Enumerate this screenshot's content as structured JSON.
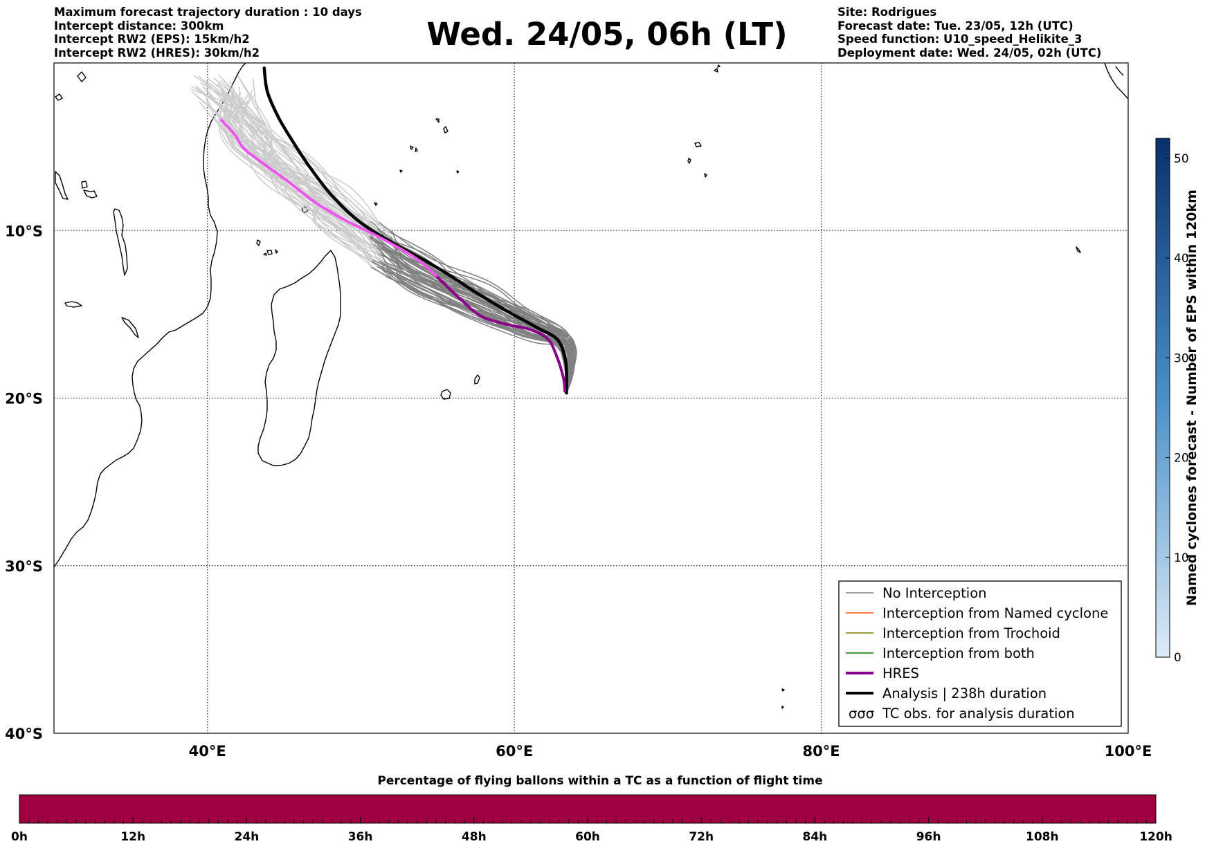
{
  "header": {
    "left_lines": [
      "Maximum forecast trajectory duration : 10 days",
      "Intercept distance: 300km",
      "Intercept RW2 (EPS):  15km/h2",
      "Intercept RW2 (HRES): 30km/h2"
    ],
    "title": "Wed. 24/05, 06h (LT)",
    "right_lines": [
      "Site: Rodrigues",
      "Forecast date: Tue. 23/05, 12h (UTC)",
      "Speed function: U10_speed_Helikite_3",
      "Deployment date: Wed. 24/05, 02h (UTC)"
    ]
  },
  "map": {
    "lon_range": [
      30,
      100
    ],
    "lat_range": [
      -40,
      0
    ],
    "lon_ticks": [
      {
        "lon": 40,
        "label": "40°E"
      },
      {
        "lon": 60,
        "label": "60°E"
      },
      {
        "lon": 80,
        "label": "80°E"
      },
      {
        "lon": 100,
        "label": "100°E"
      }
    ],
    "lat_ticks": [
      {
        "lat": -10,
        "label": "10°S"
      },
      {
        "lat": -20,
        "label": "20°S"
      },
      {
        "lat": -30,
        "label": "30°S"
      },
      {
        "lat": -40,
        "label": "40°S"
      }
    ],
    "grid": true,
    "colors": {
      "no_interception": "#808080",
      "no_interception_late": "#cccccc",
      "named_cyclone": "#ff5500",
      "trochoid": "#808000",
      "both": "#008000",
      "hres": "#8b008b",
      "hres_late": "#ee55ee",
      "analysis": "#000000"
    },
    "launch_site": {
      "lon": 63.4,
      "lat": -19.7
    },
    "analysis_track": [
      [
        63.4,
        -19.7
      ],
      [
        63.4,
        -18.5
      ],
      [
        63.3,
        -17.6
      ],
      [
        62.8,
        -16.5
      ],
      [
        61.5,
        -15.8
      ],
      [
        59.5,
        -14.8
      ],
      [
        57.5,
        -13.7
      ],
      [
        56.0,
        -12.8
      ],
      [
        54.2,
        -11.8
      ],
      [
        52.0,
        -10.7
      ],
      [
        49.8,
        -9.4
      ],
      [
        48.0,
        -7.8
      ],
      [
        46.5,
        -6.0
      ],
      [
        45.5,
        -4.6
      ],
      [
        44.6,
        -3.2
      ],
      [
        43.9,
        -1.7
      ],
      [
        43.7,
        -0.3
      ]
    ],
    "hres_track": [
      [
        63.3,
        -19.6
      ],
      [
        63.2,
        -18.8
      ],
      [
        62.8,
        -17.6
      ],
      [
        62.2,
        -16.5
      ],
      [
        61.0,
        -15.9
      ],
      [
        59.5,
        -15.6
      ],
      [
        57.8,
        -15.1
      ],
      [
        56.5,
        -14.1
      ],
      [
        55.0,
        -12.8
      ],
      [
        53.5,
        -11.6
      ],
      [
        51.0,
        -10.3
      ],
      [
        49.0,
        -9.4
      ],
      [
        47.0,
        -8.3
      ],
      [
        45.0,
        -6.9
      ],
      [
        42.5,
        -5.2
      ],
      [
        41.8,
        -4.3
      ],
      [
        40.9,
        -3.4
      ]
    ],
    "hres_split_index": 8
  },
  "legend": {
    "items": [
      {
        "label": "No Interception",
        "color": "#808080",
        "kind": "thin"
      },
      {
        "label": "Interception from Named cyclone",
        "color": "#ff5500",
        "kind": "thin"
      },
      {
        "label": "Interception from Trochoid",
        "color": "#808000",
        "kind": "thin"
      },
      {
        "label": "Interception from both",
        "color": "#008000",
        "kind": "thin"
      },
      {
        "label": "HRES",
        "color": "#8b008b",
        "kind": "thick"
      },
      {
        "label": "Analysis | 238h duration",
        "color": "#000000",
        "kind": "thick"
      },
      {
        "label": "TC obs. for analysis duration",
        "color": "#000000",
        "kind": "symbol"
      }
    ]
  },
  "colorbar": {
    "title": "Named cyclones forecast - Number of EPS within 120km",
    "min": 0,
    "max": 52,
    "ticks": [
      0,
      10,
      20,
      30,
      40,
      50
    ],
    "color_low": "#deebf7",
    "color_high": "#08306b"
  },
  "bottom_bar": {
    "title": "Percentage of flying ballons within a TC as a function of flight time",
    "ticks": [
      "0h",
      "12h",
      "24h",
      "36h",
      "48h",
      "60h",
      "72h",
      "84h",
      "96h",
      "108h",
      "120h"
    ],
    "fill_color": "#9e0040"
  }
}
